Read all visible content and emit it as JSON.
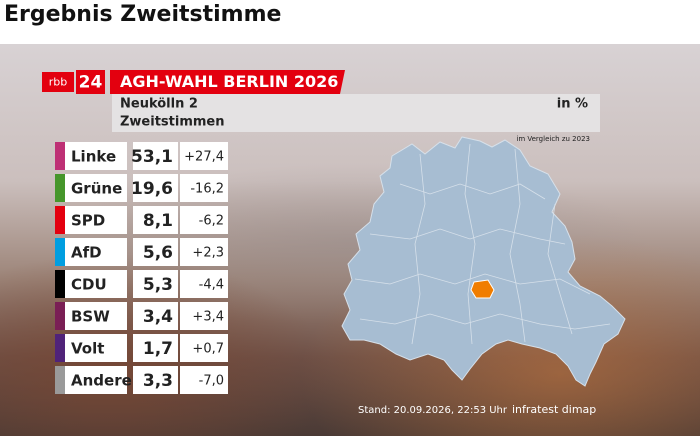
{
  "header": {
    "title": "Ergebnis Zweitstimme"
  },
  "graphic": {
    "logo": {
      "brand": "rbb",
      "number": "24"
    },
    "banner": "AGH-WAHL BERLIN 2026",
    "district": "Neukölln 2",
    "vote_type": "Zweitstimmen",
    "unit": "in %",
    "comparison": "im Vergleich zu 2023",
    "rows": [
      {
        "party": "Linke",
        "color": "#be3075",
        "share": "53,1",
        "change": "+27,4"
      },
      {
        "party": "Grüne",
        "color": "#46962b",
        "share": "19,6",
        "change": "-16,2"
      },
      {
        "party": "SPD",
        "color": "#e3000f",
        "share": "8,1",
        "change": "-6,2"
      },
      {
        "party": "AfD",
        "color": "#009ee0",
        "share": "5,6",
        "change": "+2,3"
      },
      {
        "party": "CDU",
        "color": "#000000",
        "share": "5,3",
        "change": "-4,4"
      },
      {
        "party": "BSW",
        "color": "#7a1f55",
        "share": "3,4",
        "change": "+3,4"
      },
      {
        "party": "Volt",
        "color": "#502379",
        "share": "1,7",
        "change": "+0,7"
      },
      {
        "party": "Andere",
        "color": "#9a9a9a",
        "share": "3,3",
        "change": "-7,0"
      }
    ],
    "footer": {
      "timestamp": "Stand: 20.09.2026, 22:53 Uhr",
      "source": "infratest dimap"
    }
  }
}
